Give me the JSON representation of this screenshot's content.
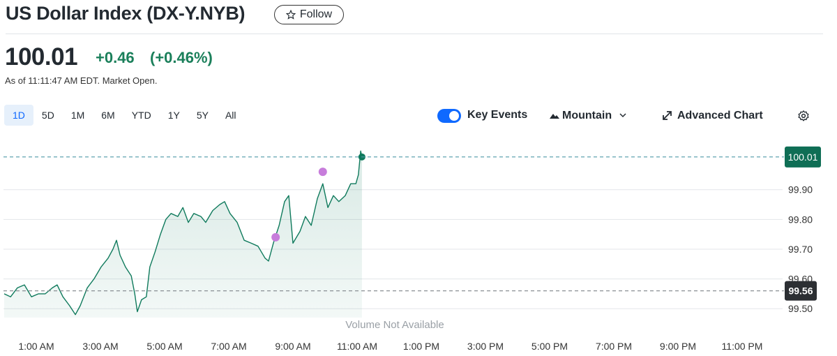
{
  "header": {
    "title": "US Dollar Index (DX-Y.NYB)",
    "follow_button": "Follow"
  },
  "quote": {
    "price": "100.01",
    "change": "+0.46",
    "change_percent": "(+0.46%)",
    "as_of": "As of 11:11:47 AM EDT. Market Open."
  },
  "range_tabs": {
    "items": [
      "1D",
      "5D",
      "1M",
      "6M",
      "YTD",
      "1Y",
      "5Y",
      "All"
    ],
    "selected": 0
  },
  "toolbar": {
    "key_events": "Key Events",
    "key_events_on": true,
    "chart_style": "Mountain",
    "advanced_chart": "Advanced Chart"
  },
  "chart_data": {
    "type": "area",
    "series": [
      {
        "color": "#0f7a5c",
        "x": [
          0.0,
          0.2,
          0.41,
          0.63,
          0.85,
          1.07,
          1.28,
          1.5,
          1.65,
          1.83,
          2.04,
          2.22,
          2.37,
          2.59,
          2.8,
          3.02,
          3.24,
          3.39,
          3.5,
          3.61,
          3.78,
          3.96,
          4.07,
          4.15,
          4.28,
          4.43,
          4.54,
          4.7,
          4.87,
          5.04,
          5.2,
          5.41,
          5.57,
          5.74,
          5.91,
          6.13,
          6.28,
          6.5,
          6.72,
          6.87,
          7.04,
          7.26,
          7.48,
          7.7,
          7.91,
          8.13,
          8.24,
          8.39,
          8.57,
          8.74,
          8.87,
          9.0,
          9.22,
          9.39,
          9.57,
          9.76,
          9.93,
          10.09,
          10.26,
          10.43,
          10.63,
          10.8,
          10.96,
          11.04,
          11.11,
          11.15
        ],
        "values": [
          99.55,
          99.54,
          99.57,
          99.58,
          99.54,
          99.55,
          99.55,
          99.57,
          99.58,
          99.54,
          99.51,
          99.48,
          99.51,
          99.57,
          99.6,
          99.64,
          99.67,
          99.7,
          99.73,
          99.68,
          99.64,
          99.61,
          99.55,
          99.49,
          99.53,
          99.54,
          99.64,
          99.69,
          99.75,
          99.8,
          99.82,
          99.81,
          99.84,
          99.79,
          99.82,
          99.81,
          99.79,
          99.83,
          99.85,
          99.86,
          99.82,
          99.79,
          99.73,
          99.72,
          99.71,
          99.67,
          99.66,
          99.72,
          99.78,
          99.86,
          99.88,
          99.72,
          99.76,
          99.81,
          99.78,
          99.87,
          99.92,
          99.84,
          99.88,
          99.86,
          99.88,
          99.92,
          99.92,
          99.95,
          100.03,
          100.01
        ]
      }
    ],
    "xlim": [
      0,
      24.2
    ],
    "xticks": [
      {
        "value": 1,
        "label": "1:00 AM"
      },
      {
        "value": 3,
        "label": "3:00 AM"
      },
      {
        "value": 5,
        "label": "5:00 AM"
      },
      {
        "value": 7,
        "label": "7:00 AM"
      },
      {
        "value": 9,
        "label": "9:00 AM"
      },
      {
        "value": 11,
        "label": "11:00 AM"
      },
      {
        "value": 13,
        "label": "1:00 PM"
      },
      {
        "value": 15,
        "label": "3:00 PM"
      },
      {
        "value": 17,
        "label": "5:00 PM"
      },
      {
        "value": 19,
        "label": "7:00 PM"
      },
      {
        "value": 21,
        "label": "9:00 PM"
      },
      {
        "value": 23,
        "label": "11:00 PM"
      }
    ],
    "ylim": [
      99.47,
      100.08
    ],
    "yticks": [
      {
        "value": 99.5,
        "label": "99.50"
      },
      {
        "value": 99.6,
        "label": "99.60"
      },
      {
        "value": 99.7,
        "label": "99.70"
      },
      {
        "value": 99.8,
        "label": "99.80"
      },
      {
        "value": 99.9,
        "label": "99.90"
      }
    ],
    "grid": true,
    "events": {
      "color": "#c77ddb",
      "x": [
        8.46,
        9.93
      ],
      "values": [
        99.74,
        99.96
      ]
    },
    "current_value": 100.01,
    "previous_close": 99.56,
    "note": "Volume Not Available"
  }
}
